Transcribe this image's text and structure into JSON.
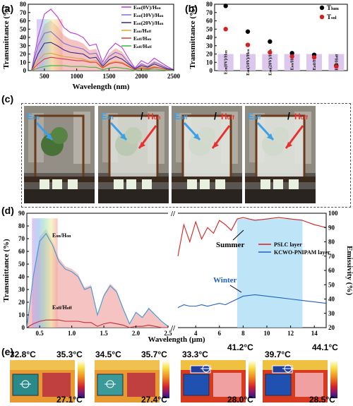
{
  "panels": {
    "a": "(a)",
    "b": "(b)",
    "c": "(c)",
    "d": "(d)",
    "e": "(e)"
  },
  "panel_a": {
    "chart_data": {
      "type": "line",
      "xlabel": "Wavelength (nm)",
      "ylabel": "Transmittance (%)",
      "xlim": [
        250,
        2500
      ],
      "ylim": [
        0,
        80
      ],
      "xticks": [
        "500",
        "1000",
        "1500",
        "2000",
        "2500"
      ],
      "yticks": [
        "0",
        "10",
        "20",
        "30",
        "40",
        "50",
        "60",
        "70",
        "80"
      ],
      "legend_position": "top-right",
      "series": [
        {
          "name_main": "E",
          "name_sub": "on",
          "name_mid": "(0V)/H",
          "name_sub2": "on",
          "color": "#b93ad6",
          "x": [
            300,
            400,
            500,
            600,
            700,
            800,
            900,
            1000,
            1100,
            1200,
            1300,
            1400,
            1500,
            1600,
            1700,
            1800,
            1900,
            2000,
            2100,
            2200,
            2300,
            2400,
            2500
          ],
          "y": [
            0,
            40,
            68,
            74,
            65,
            52,
            46,
            44,
            40,
            30,
            32,
            10,
            25,
            33,
            28,
            15,
            3,
            12,
            8,
            15,
            10,
            5,
            1
          ]
        },
        {
          "name_main": "E",
          "name_sub": "on",
          "name_mid": "(10V)/H",
          "name_sub2": "on",
          "color": "#7c6fd6",
          "x": [
            300,
            400,
            500,
            600,
            700,
            800,
            900,
            1000,
            1100,
            1200,
            1300,
            1400,
            1500,
            1600,
            1700,
            1800,
            1900,
            2000,
            2100,
            2200,
            2300,
            2400,
            2500
          ],
          "y": [
            0,
            30,
            45,
            47,
            40,
            33,
            30,
            28,
            26,
            20,
            21,
            7,
            17,
            22,
            19,
            10,
            2,
            8,
            5,
            10,
            7,
            3,
            1
          ]
        },
        {
          "name_main": "E",
          "name_sub": "on",
          "name_mid": "(20V)/H",
          "name_sub2": "on",
          "color": "#2c2a8a",
          "x": [
            300,
            400,
            500,
            600,
            700,
            800,
            900,
            1000,
            1100,
            1200,
            1300,
            1400,
            1500,
            1600,
            1700,
            1800,
            1900,
            2000,
            2100,
            2200,
            2300,
            2400,
            2500
          ],
          "y": [
            0,
            20,
            33,
            34,
            30,
            25,
            22,
            21,
            20,
            15,
            16,
            5,
            13,
            17,
            14,
            8,
            2,
            6,
            4,
            8,
            5,
            2,
            1
          ]
        },
        {
          "name_main": "E",
          "name_sub": "on",
          "name_mid": "/H",
          "name_sub2": "off",
          "color": "#e0a33a",
          "x": [
            300,
            400,
            500,
            600,
            700,
            800,
            900,
            1000,
            1100,
            1200,
            1300,
            1400,
            1500,
            1600,
            1700,
            1800,
            1900,
            2000,
            2100,
            2200,
            2300,
            2400,
            2500
          ],
          "y": [
            0,
            12,
            20,
            21,
            19,
            17,
            16,
            15,
            14,
            11,
            12,
            4,
            9,
            11,
            10,
            6,
            1,
            4,
            3,
            5,
            3,
            1,
            0
          ]
        },
        {
          "name_main": "E",
          "name_sub": "off",
          "name_mid": "/H",
          "name_sub2": "on",
          "color": "#d83a3a",
          "x": [
            300,
            400,
            500,
            600,
            700,
            800,
            900,
            1000,
            1100,
            1200,
            1300,
            1400,
            1500,
            1600,
            1700,
            1800,
            1900,
            2000,
            2100,
            2200,
            2300,
            2400,
            2500
          ],
          "y": [
            0,
            8,
            14,
            16,
            15,
            14,
            13,
            12,
            12,
            10,
            10,
            3,
            8,
            10,
            9,
            5,
            1,
            3,
            2,
            4,
            3,
            1,
            0
          ]
        },
        {
          "name_main": "E",
          "name_sub": "off",
          "name_mid": "/H",
          "name_sub2": "off",
          "color": "#3ab53a",
          "x": [
            300,
            400,
            500,
            600,
            700,
            800,
            900,
            1000,
            1100,
            1200,
            1300,
            1400,
            1500,
            1600,
            1700,
            1800,
            1900,
            2000,
            2100,
            2200,
            2300,
            2400,
            2500
          ],
          "y": [
            0,
            3,
            5,
            6,
            6,
            6,
            5,
            5,
            5,
            4,
            4,
            1,
            3,
            4,
            3,
            2,
            0,
            1,
            1,
            2,
            1,
            0,
            0
          ]
        }
      ]
    }
  },
  "panel_b": {
    "chart_data": {
      "type": "scatter",
      "ylabel": "Transmittance (%)",
      "ylim": [
        0,
        80
      ],
      "yticks": [
        "0",
        "10",
        "20",
        "30",
        "40",
        "50",
        "60",
        "70",
        "80"
      ],
      "categories": [
        {
          "main": "E",
          "sub": "on",
          "mid": "(0V)/H",
          "sub2": "on"
        },
        {
          "main": "E",
          "sub": "on",
          "mid": "(10V)/H",
          "sub2": "on"
        },
        {
          "main": "E",
          "sub": "on",
          "mid": "(20V)/H",
          "sub2": "on"
        },
        {
          "main": "E",
          "sub": "on",
          "mid": "/H",
          "sub2": "off"
        },
        {
          "main": "E",
          "sub": "off",
          "mid": "/H",
          "sub2": "on"
        },
        {
          "main": "E",
          "sub": "off",
          "mid": "/H",
          "sub2": "off"
        }
      ],
      "series": [
        {
          "name_main": "T",
          "name_sub": "lum",
          "color": "#000000",
          "values": [
            78,
            47,
            35,
            21,
            19,
            6
          ]
        },
        {
          "name_main": "T",
          "name_sub": "sol",
          "color": "#d42020",
          "values": [
            50,
            31,
            22,
            17,
            16,
            5
          ]
        }
      ],
      "legend_position": "top-right"
    }
  },
  "panel_c": {
    "photos": [
      {
        "e_sub": "on",
        "h_sub": "",
        "e_color": "#3aa0e8",
        "h_color": "#e83030",
        "show_h": false
      },
      {
        "e_sub": "on",
        "h_sub": "on",
        "e_color": "#3aa0e8",
        "h_color": "#e83030",
        "show_h": true
      },
      {
        "e_sub": "off",
        "h_sub": "off",
        "e_color": "#3aa0e8",
        "h_color": "#e83030",
        "show_h": true
      },
      {
        "e_sub": "off",
        "h_sub": "off",
        "e_color": "#3aa0e8",
        "h_color": "#e83030",
        "show_h": true
      }
    ],
    "e_main": "E",
    "h_main": "H"
  },
  "panel_d": {
    "chart_data": {
      "type": "line",
      "xlabel": "Wavelength (μm)",
      "ylabel_left": "Transmittance (%)",
      "ylabel_right": "Emissivity (%)",
      "ylim_left": [
        0,
        90
      ],
      "ylim_right": [
        20,
        100
      ],
      "xticks_left": [
        "0.5",
        "1.0",
        "1.5",
        "2.0",
        "2.5"
      ],
      "xticks_right": [
        "4",
        "6",
        "8",
        "10",
        "12",
        "14"
      ],
      "yticks_left": [
        "0",
        "10",
        "20",
        "30",
        "40",
        "50",
        "60",
        "70",
        "80",
        "90"
      ],
      "yticks_right": [
        "20",
        "30",
        "40",
        "50",
        "60",
        "70",
        "80",
        "90",
        "100"
      ],
      "annotations": [
        {
          "main": "E",
          "sub": "on",
          "mid": "/H",
          "sub2": "on"
        },
        {
          "main": "E",
          "sub": "off",
          "mid": "/H",
          "sub2": "off"
        }
      ],
      "summer_label": "Summer",
      "winter_label": "Winter",
      "legend": [
        {
          "name": "PSLC layer",
          "color": "#d42020"
        },
        {
          "name": "KCWO-PNIPAM layer",
          "color": "#2060c0"
        }
      ],
      "transmittance_on": {
        "x": [
          0.3,
          0.4,
          0.5,
          0.6,
          0.7,
          0.8,
          0.9,
          1.0,
          1.1,
          1.2,
          1.3,
          1.4,
          1.5,
          1.6,
          1.7,
          1.8,
          1.9,
          2.0,
          2.1,
          2.2,
          2.3,
          2.4,
          2.5
        ],
        "y": [
          0,
          40,
          68,
          74,
          65,
          52,
          46,
          44,
          40,
          30,
          32,
          10,
          25,
          33,
          28,
          15,
          3,
          12,
          8,
          15,
          10,
          5,
          1
        ]
      },
      "transmittance_off": {
        "x": [
          0.3,
          0.4,
          0.5,
          0.6,
          0.7,
          0.8,
          0.9,
          1.0,
          1.1,
          1.2,
          1.3,
          1.4,
          1.5,
          1.6,
          1.7,
          1.8,
          1.9,
          2.0,
          2.1,
          2.2,
          2.3,
          2.4,
          2.5
        ],
        "y": [
          0,
          3,
          5,
          6,
          6,
          6,
          5,
          5,
          5,
          4,
          4,
          1,
          3,
          4,
          3,
          2,
          0,
          1,
          1,
          2,
          1,
          0,
          0
        ]
      },
      "emissivity_summer": {
        "x": [
          2.5,
          3,
          3.5,
          4,
          4.5,
          5,
          5.5,
          6,
          6.5,
          7,
          7.5,
          8,
          9,
          10,
          11,
          12,
          13,
          14,
          15
        ],
        "y": [
          70,
          92,
          80,
          94,
          82,
          90,
          86,
          95,
          92,
          88,
          96,
          97,
          95,
          96,
          97,
          96,
          95,
          92,
          90
        ]
      },
      "emissivity_winter": {
        "x": [
          2.5,
          3,
          3.5,
          4,
          4.5,
          5,
          5.5,
          6,
          6.5,
          7,
          7.5,
          8,
          9,
          10,
          11,
          12,
          13,
          14,
          15
        ],
        "y": [
          34,
          36,
          35,
          35,
          36,
          35,
          36,
          37,
          36,
          38,
          40,
          42,
          43,
          42,
          41,
          40,
          39,
          38,
          37
        ]
      }
    }
  },
  "panel_e": {
    "images": [
      {
        "spot": "32.8°C",
        "max": "35.3°C",
        "min": "27.1°C"
      },
      {
        "spot": "34.5°C",
        "max": "35.7°C",
        "min": "27.4°C"
      },
      {
        "spot": "33.3°C",
        "max": "41.2°C",
        "min": "28.0°C"
      },
      {
        "spot": "39.7°C",
        "max": "44.1°C",
        "min": "28.5°C"
      }
    ]
  }
}
